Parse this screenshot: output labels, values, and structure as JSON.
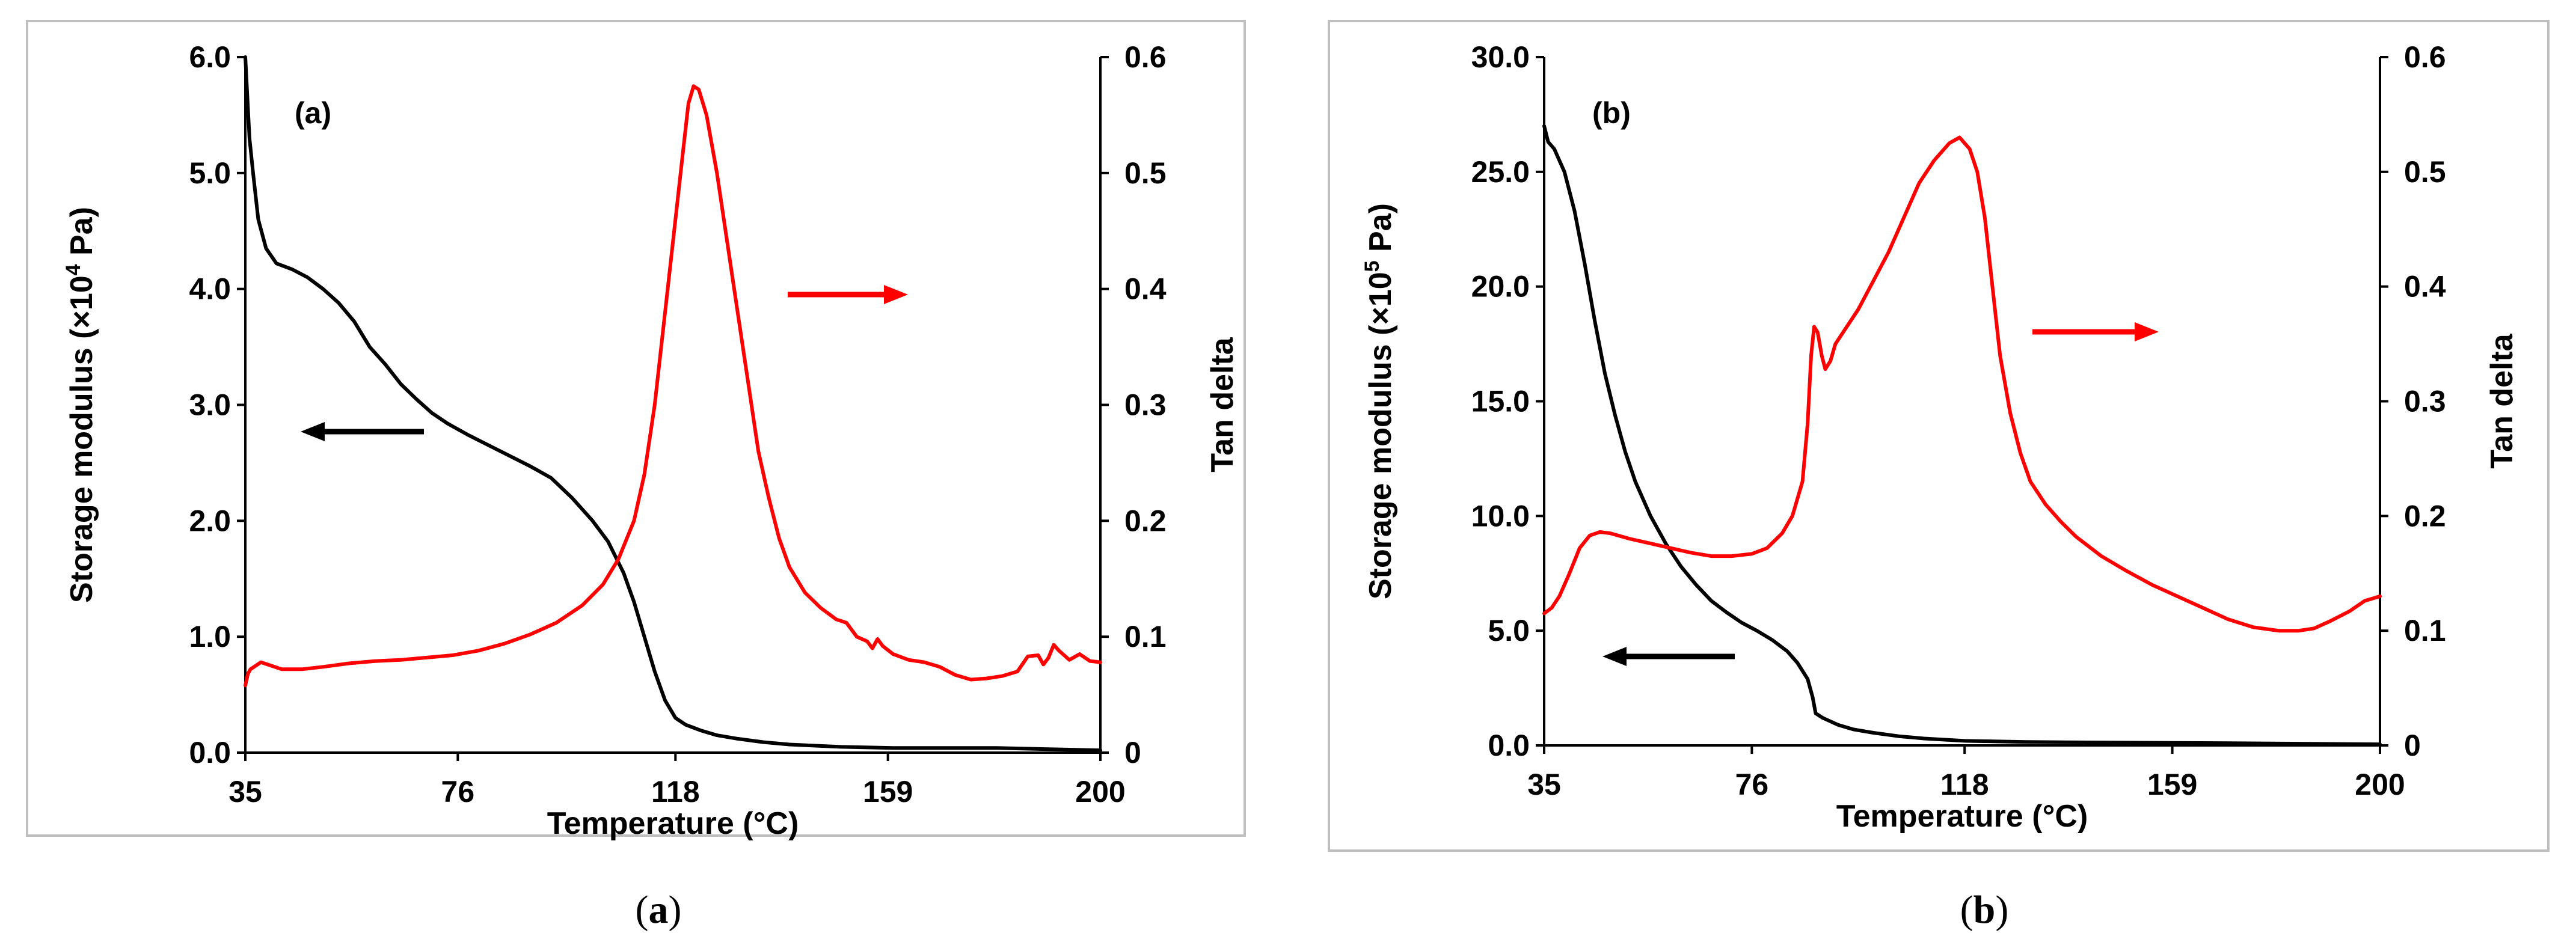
{
  "chart_data": [
    {
      "type": "line",
      "panel_label": "(a)",
      "caption": {
        "open": "(",
        "letter": "a",
        "close": ")"
      },
      "xlabel": "Temperature (°C)",
      "ylabel_left": {
        "base": "Storage modulus (×10",
        "sup": "4",
        "end": " Pa)"
      },
      "ylabel_right": "Tan delta",
      "xlim": [
        35,
        200
      ],
      "xticks": [
        35,
        76,
        118,
        159,
        200
      ],
      "xtick_labels": [
        "35",
        "76",
        "118",
        "159",
        "200"
      ],
      "ylim_left": [
        0,
        6
      ],
      "yticks_left": [
        0,
        1,
        2,
        3,
        4,
        5,
        6
      ],
      "ytick_labels_left": [
        "0.0",
        "1.0",
        "2.0",
        "3.0",
        "4.0",
        "5.0",
        "6.0"
      ],
      "ylim_right": [
        0,
        0.6
      ],
      "yticks_right": [
        0,
        0.1,
        0.2,
        0.3,
        0.4,
        0.5,
        0.6
      ],
      "ytick_labels_right": [
        "0",
        "0.1",
        "0.2",
        "0.3",
        "0.4",
        "0.5",
        "0.6"
      ],
      "series": [
        {
          "name": "Storage modulus",
          "axis": "left",
          "color": "#000000",
          "points": [
            [
              35,
              6.0
            ],
            [
              35.8,
              5.3
            ],
            [
              36.5,
              5.0
            ],
            [
              37.5,
              4.6
            ],
            [
              39,
              4.35
            ],
            [
              41,
              4.22
            ],
            [
              44,
              4.17
            ],
            [
              47,
              4.1
            ],
            [
              50,
              4.0
            ],
            [
              53,
              3.88
            ],
            [
              56,
              3.72
            ],
            [
              59,
              3.5
            ],
            [
              62,
              3.35
            ],
            [
              65,
              3.18
            ],
            [
              68,
              3.05
            ],
            [
              71,
              2.93
            ],
            [
              74,
              2.84
            ],
            [
              78,
              2.74
            ],
            [
              82,
              2.65
            ],
            [
              86,
              2.56
            ],
            [
              90,
              2.47
            ],
            [
              94,
              2.37
            ],
            [
              98,
              2.2
            ],
            [
              102,
              2.0
            ],
            [
              105,
              1.82
            ],
            [
              108,
              1.55
            ],
            [
              110,
              1.3
            ],
            [
              112,
              1.0
            ],
            [
              114,
              0.7
            ],
            [
              116,
              0.45
            ],
            [
              118,
              0.3
            ],
            [
              120,
              0.24
            ],
            [
              123,
              0.19
            ],
            [
              126,
              0.15
            ],
            [
              130,
              0.12
            ],
            [
              135,
              0.09
            ],
            [
              140,
              0.07
            ],
            [
              150,
              0.05
            ],
            [
              160,
              0.04
            ],
            [
              180,
              0.04
            ],
            [
              190,
              0.03
            ],
            [
              200,
              0.02
            ]
          ]
        },
        {
          "name": "Tan delta",
          "axis": "right",
          "color": "#ff0000",
          "points": [
            [
              35,
              0.058
            ],
            [
              35.5,
              0.068
            ],
            [
              36,
              0.072
            ],
            [
              38,
              0.078
            ],
            [
              40,
              0.075
            ],
            [
              42,
              0.072
            ],
            [
              46,
              0.072
            ],
            [
              50,
              0.074
            ],
            [
              55,
              0.077
            ],
            [
              60,
              0.079
            ],
            [
              65,
              0.08
            ],
            [
              70,
              0.082
            ],
            [
              75,
              0.084
            ],
            [
              80,
              0.088
            ],
            [
              85,
              0.094
            ],
            [
              90,
              0.102
            ],
            [
              95,
              0.112
            ],
            [
              100,
              0.127
            ],
            [
              104,
              0.145
            ],
            [
              107,
              0.167
            ],
            [
              110,
              0.2
            ],
            [
              112,
              0.24
            ],
            [
              114,
              0.3
            ],
            [
              116,
              0.38
            ],
            [
              118,
              0.46
            ],
            [
              119.5,
              0.52
            ],
            [
              120.5,
              0.56
            ],
            [
              121.5,
              0.575
            ],
            [
              122.5,
              0.572
            ],
            [
              124,
              0.55
            ],
            [
              126,
              0.5
            ],
            [
              128,
              0.44
            ],
            [
              130,
              0.38
            ],
            [
              132,
              0.32
            ],
            [
              134,
              0.26
            ],
            [
              136,
              0.22
            ],
            [
              138,
              0.185
            ],
            [
              140,
              0.16
            ],
            [
              143,
              0.138
            ],
            [
              146,
              0.125
            ],
            [
              149,
              0.115
            ],
            [
              151,
              0.112
            ],
            [
              153,
              0.1
            ],
            [
              155,
              0.096
            ],
            [
              156,
              0.09
            ],
            [
              157,
              0.098
            ],
            [
              158,
              0.092
            ],
            [
              160,
              0.085
            ],
            [
              163,
              0.08
            ],
            [
              166,
              0.078
            ],
            [
              169,
              0.074
            ],
            [
              172,
              0.067
            ],
            [
              175,
              0.063
            ],
            [
              178,
              0.064
            ],
            [
              181,
              0.066
            ],
            [
              184,
              0.07
            ],
            [
              186,
              0.083
            ],
            [
              188,
              0.084
            ],
            [
              189,
              0.076
            ],
            [
              190,
              0.082
            ],
            [
              191,
              0.093
            ],
            [
              192,
              0.088
            ],
            [
              194,
              0.08
            ],
            [
              196,
              0.085
            ],
            [
              198,
              0.079
            ],
            [
              200,
              0.078
            ]
          ]
        }
      ],
      "annotations": [
        {
          "type": "arrow",
          "direction": "left",
          "color": "#000000",
          "meaning": "storage modulus uses left axis"
        },
        {
          "type": "arrow",
          "direction": "right",
          "color": "#ff0000",
          "meaning": "tan delta uses right axis"
        }
      ]
    },
    {
      "type": "line",
      "panel_label": "(b)",
      "caption": {
        "open": "(",
        "letter": "b",
        "close": ")"
      },
      "xlabel": "Temperature (°C)",
      "ylabel_left": {
        "base": "Storage modulus (×10",
        "sup": "5",
        "end": " Pa)"
      },
      "ylabel_right": "Tan delta",
      "xlim": [
        35,
        200
      ],
      "xticks": [
        35,
        76,
        118,
        159,
        200
      ],
      "xtick_labels": [
        "35",
        "76",
        "118",
        "159",
        "200"
      ],
      "ylim_left": [
        0,
        30
      ],
      "yticks_left": [
        0,
        5,
        10,
        15,
        20,
        25,
        30
      ],
      "ytick_labels_left": [
        "0.0",
        "5.0",
        "10.0",
        "15.0",
        "20.0",
        "25.0",
        "30.0"
      ],
      "ylim_right": [
        0,
        0.6
      ],
      "yticks_right": [
        0,
        0.1,
        0.2,
        0.3,
        0.4,
        0.5,
        0.6
      ],
      "ytick_labels_right": [
        "0",
        "0.1",
        "0.2",
        "0.3",
        "0.4",
        "0.5",
        "0.6"
      ],
      "series": [
        {
          "name": "Storage modulus",
          "axis": "left",
          "color": "#000000",
          "points": [
            [
              35,
              27.0
            ],
            [
              35.8,
              26.3
            ],
            [
              37,
              26.0
            ],
            [
              39,
              25.0
            ],
            [
              41,
              23.3
            ],
            [
              43,
              21.0
            ],
            [
              45,
              18.5
            ],
            [
              47,
              16.2
            ],
            [
              49,
              14.4
            ],
            [
              51,
              12.8
            ],
            [
              53,
              11.5
            ],
            [
              56,
              10.0
            ],
            [
              59,
              8.8
            ],
            [
              62,
              7.8
            ],
            [
              65,
              7.0
            ],
            [
              68,
              6.3
            ],
            [
              71,
              5.8
            ],
            [
              74,
              5.35
            ],
            [
              77,
              5.0
            ],
            [
              80,
              4.6
            ],
            [
              83,
              4.1
            ],
            [
              85,
              3.6
            ],
            [
              87,
              2.9
            ],
            [
              88,
              2.1
            ],
            [
              88.6,
              1.4
            ],
            [
              90,
              1.2
            ],
            [
              93,
              0.9
            ],
            [
              96,
              0.7
            ],
            [
              100,
              0.55
            ],
            [
              105,
              0.4
            ],
            [
              110,
              0.3
            ],
            [
              118,
              0.2
            ],
            [
              130,
              0.15
            ],
            [
              150,
              0.12
            ],
            [
              170,
              0.1
            ],
            [
              200,
              0.05
            ]
          ]
        },
        {
          "name": "Tan delta",
          "axis": "right",
          "color": "#ff0000",
          "points": [
            [
              35,
              0.115
            ],
            [
              36.5,
              0.12
            ],
            [
              38,
              0.13
            ],
            [
              40,
              0.15
            ],
            [
              42,
              0.172
            ],
            [
              44,
              0.183
            ],
            [
              46,
              0.186
            ],
            [
              48,
              0.185
            ],
            [
              52,
              0.18
            ],
            [
              56,
              0.176
            ],
            [
              60,
              0.172
            ],
            [
              64,
              0.168
            ],
            [
              68,
              0.165
            ],
            [
              72,
              0.165
            ],
            [
              76,
              0.167
            ],
            [
              79,
              0.172
            ],
            [
              82,
              0.185
            ],
            [
              84,
              0.2
            ],
            [
              86,
              0.23
            ],
            [
              87,
              0.28
            ],
            [
              87.7,
              0.34
            ],
            [
              88.3,
              0.365
            ],
            [
              89,
              0.36
            ],
            [
              89.8,
              0.34
            ],
            [
              90.5,
              0.328
            ],
            [
              91.5,
              0.335
            ],
            [
              92.5,
              0.35
            ],
            [
              94,
              0.36
            ],
            [
              97,
              0.38
            ],
            [
              100,
              0.405
            ],
            [
              103,
              0.43
            ],
            [
              106,
              0.46
            ],
            [
              109,
              0.49
            ],
            [
              112,
              0.51
            ],
            [
              115,
              0.525
            ],
            [
              117,
              0.53
            ],
            [
              119,
              0.52
            ],
            [
              120.5,
              0.5
            ],
            [
              122,
              0.46
            ],
            [
              123.5,
              0.4
            ],
            [
              125,
              0.34
            ],
            [
              127,
              0.29
            ],
            [
              129,
              0.255
            ],
            [
              131,
              0.23
            ],
            [
              134,
              0.21
            ],
            [
              137,
              0.195
            ],
            [
              140,
              0.182
            ],
            [
              145,
              0.165
            ],
            [
              150,
              0.152
            ],
            [
              155,
              0.14
            ],
            [
              160,
              0.13
            ],
            [
              165,
              0.12
            ],
            [
              170,
              0.11
            ],
            [
              175,
              0.103
            ],
            [
              180,
              0.1
            ],
            [
              184,
              0.1
            ],
            [
              187,
              0.102
            ],
            [
              190,
              0.108
            ],
            [
              194,
              0.117
            ],
            [
              197,
              0.126
            ],
            [
              200,
              0.13
            ]
          ]
        }
      ],
      "annotations": [
        {
          "type": "arrow",
          "direction": "left",
          "color": "#000000",
          "meaning": "storage modulus uses left axis"
        },
        {
          "type": "arrow",
          "direction": "right",
          "color": "#ff0000",
          "meaning": "tan delta uses right axis"
        }
      ]
    }
  ]
}
